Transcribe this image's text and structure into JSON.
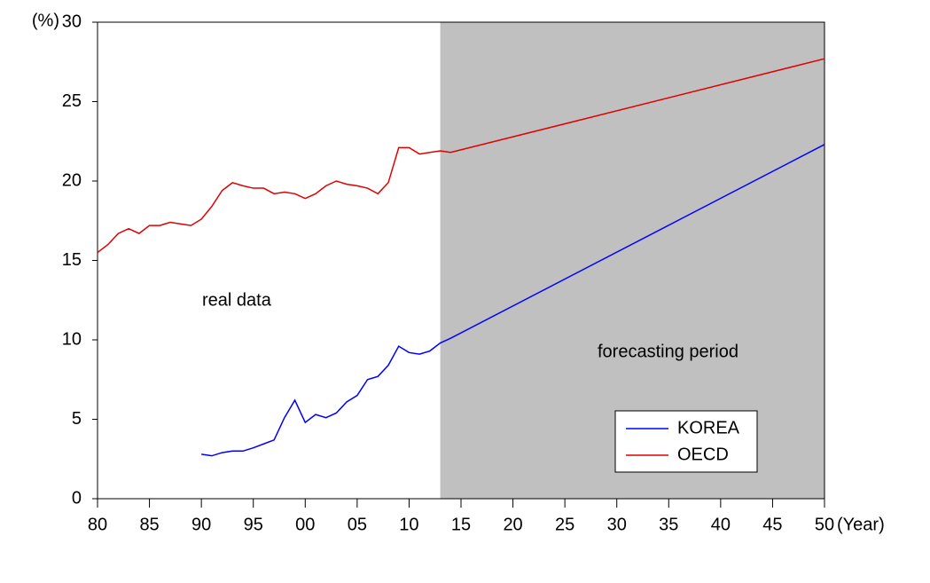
{
  "chart_data": {
    "type": "line",
    "y_label": "(%)",
    "x_label": "(Year)",
    "annotations": [
      "real data",
      "forecasting period"
    ],
    "forecast_start": 2013,
    "shade_color": "#c0c0c0",
    "x": [
      1980,
      1981,
      1982,
      1983,
      1984,
      1985,
      1986,
      1987,
      1988,
      1989,
      1990,
      1991,
      1992,
      1993,
      1994,
      1995,
      1996,
      1997,
      1998,
      1999,
      2000,
      2001,
      2002,
      2003,
      2004,
      2005,
      2006,
      2007,
      2008,
      2009,
      2010,
      2011,
      2012,
      2013,
      2014,
      2050
    ],
    "series": [
      {
        "name": "KOREA",
        "color": "#0000ff",
        "values": [
          null,
          null,
          null,
          null,
          null,
          null,
          null,
          null,
          null,
          null,
          2.8,
          2.7,
          2.9,
          3.0,
          3.0,
          3.2,
          3.45,
          3.7,
          5.1,
          6.2,
          4.8,
          5.3,
          5.1,
          5.4,
          6.1,
          6.5,
          7.5,
          7.7,
          8.4,
          9.6,
          9.2,
          9.1,
          9.3,
          9.8,
          10.1,
          22.3
        ]
      },
      {
        "name": "OECD",
        "color": "#e00000",
        "values": [
          15.5,
          16.0,
          16.7,
          17.0,
          16.7,
          17.2,
          17.2,
          17.4,
          17.3,
          17.2,
          17.6,
          18.4,
          19.4,
          19.9,
          19.7,
          19.55,
          19.55,
          19.2,
          19.3,
          19.2,
          18.9,
          19.2,
          19.7,
          20.0,
          19.8,
          19.7,
          19.55,
          19.2,
          19.9,
          22.1,
          22.1,
          21.7,
          21.8,
          21.9,
          21.8,
          27.7
        ]
      }
    ],
    "xlim": [
      1980,
      2050
    ],
    "xticks": [
      {
        "value": 1980,
        "label": "80"
      },
      {
        "value": 1985,
        "label": "85"
      },
      {
        "value": 1990,
        "label": "90"
      },
      {
        "value": 1995,
        "label": "95"
      },
      {
        "value": 2000,
        "label": "00"
      },
      {
        "value": 2005,
        "label": "05"
      },
      {
        "value": 2010,
        "label": "10"
      },
      {
        "value": 2015,
        "label": "15"
      },
      {
        "value": 2020,
        "label": "20"
      },
      {
        "value": 2025,
        "label": "25"
      },
      {
        "value": 2030,
        "label": "30"
      },
      {
        "value": 2035,
        "label": "35"
      },
      {
        "value": 2040,
        "label": "40"
      },
      {
        "value": 2045,
        "label": "45"
      },
      {
        "value": 2050,
        "label": "50"
      }
    ],
    "ylim": [
      0,
      30
    ],
    "yticks": [
      0,
      5,
      10,
      15,
      20,
      25,
      30
    ],
    "legend": "lower-right"
  }
}
